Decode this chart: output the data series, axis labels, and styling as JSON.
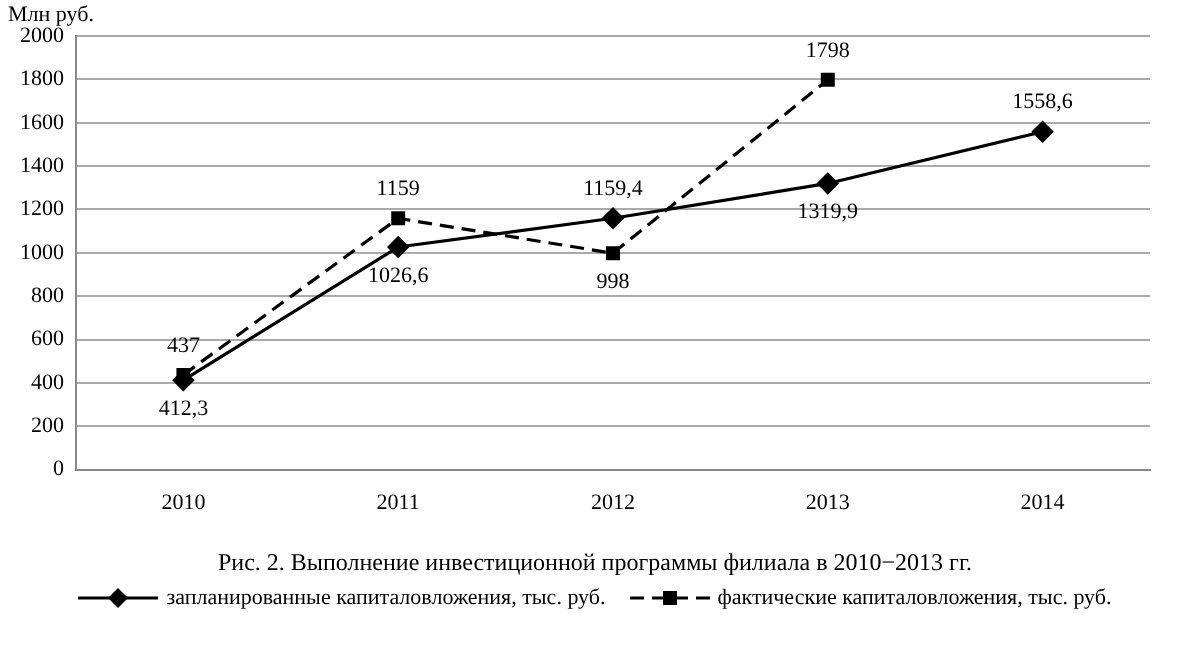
{
  "chart_data": {
    "type": "line",
    "title": "Рис. 2. Выполнение инвестиционной программы филиала в 2010−2013 гг.",
    "ylabel": "Млн руб.",
    "categories": [
      "2010",
      "2011",
      "2012",
      "2013",
      "2014"
    ],
    "series": [
      {
        "name": "запланированные капиталовложения, тыс. руб.",
        "color": "#000000",
        "marker": "diamond",
        "line_style": "solid",
        "values": [
          412.3,
          1026.6,
          1159.4,
          1319.9,
          1558.6
        ],
        "value_labels": [
          "412,3",
          "1026,6",
          "1159,4",
          "1319,9",
          "1558,6"
        ]
      },
      {
        "name": "фактические капиталовложения, тыс. руб.",
        "color": "#000000",
        "marker": "square",
        "line_style": "dashed",
        "values": [
          437,
          1159,
          998,
          1798,
          null
        ],
        "value_labels": [
          "437",
          "1159",
          "998",
          "1798",
          null
        ]
      }
    ],
    "ylim": [
      0,
      2000
    ],
    "yticks": [
      0,
      200,
      400,
      600,
      800,
      1000,
      1200,
      1400,
      1600,
      1800,
      2000
    ],
    "grid": "y",
    "legend": "bottom"
  }
}
